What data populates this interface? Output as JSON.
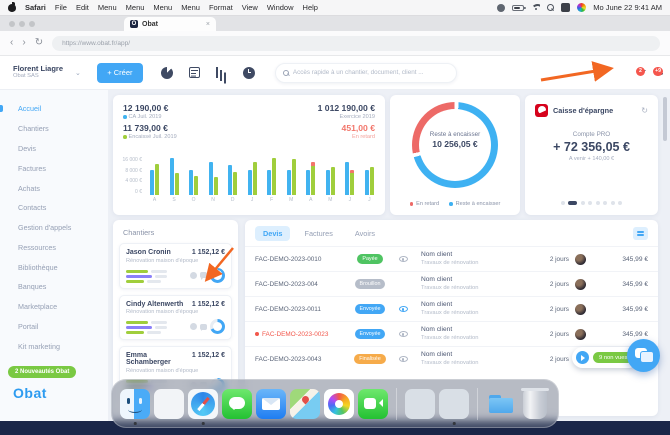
{
  "menubar": {
    "items": [
      "Safari",
      "File",
      "Edit",
      "Menu",
      "Menu",
      "Menu",
      "Menu",
      "Format",
      "View",
      "Window",
      "Help"
    ],
    "clock": "Mo June 22  9:41 AM"
  },
  "browser": {
    "tab_title": "Obat",
    "tab_close": "×",
    "url": "https://www.obat.fr/app/",
    "back": "‹",
    "forward": "›",
    "reload": "↻"
  },
  "header": {
    "user_name": "Florent Liagre",
    "company": "Obat SAS",
    "chevron": "⌄",
    "create_label": "+ Créer",
    "search_placeholder": "Accès rapide à un chantier, document, client ...",
    "chat_badge": "2",
    "bell_badge": "+9"
  },
  "sidebar": {
    "items": [
      {
        "label": "Accueil",
        "active": true
      },
      {
        "label": "Chantiers",
        "active": false
      },
      {
        "label": "Devis",
        "active": false
      },
      {
        "label": "Factures",
        "active": false
      },
      {
        "label": "Achats",
        "active": false
      },
      {
        "label": "Contacts",
        "active": false
      },
      {
        "label": "Gestion d'appels",
        "active": false
      },
      {
        "label": "Ressources",
        "active": false
      },
      {
        "label": "Bibliothèque",
        "active": false
      },
      {
        "label": "Banques",
        "active": false
      },
      {
        "label": "Marketplace",
        "active": false
      },
      {
        "label": "Portail",
        "active": false
      },
      {
        "label": "Kit marketing",
        "active": false
      }
    ],
    "new_badge": "2 Nouveautés Obat",
    "logo": "Obat"
  },
  "stats": {
    "ca_value": "12 190,00 €",
    "ca_label": "CA Juil. 2019",
    "ca_color": "#41b3f0",
    "enc_value": "11 739,00 €",
    "enc_label": "Encaissé Juil. 2019",
    "enc_color": "#a0ce3c",
    "ex_value": "1 012 190,00 €",
    "ex_label": "Exercice 2019",
    "late_value": "451,00 €",
    "late_label": "En retard"
  },
  "chart_data": [
    {
      "type": "bar",
      "categories": [
        "A",
        "S",
        "O",
        "N",
        "D",
        "J",
        "F",
        "M",
        "A",
        "M",
        "J",
        "J"
      ],
      "yticks": [
        "16 000 €",
        "8 000 €",
        "4 000 €",
        "0 €"
      ],
      "ylim": [
        0,
        20000
      ],
      "series": [
        {
          "name": "CA",
          "color": "#41b3f0",
          "values": [
            9000,
            18500,
            8500,
            15500,
            12500,
            8500,
            8500,
            8500,
            8500,
            8500,
            15500,
            8500
          ]
        },
        {
          "name": "Encaissé",
          "color": "#a0ce3c",
          "values": [
            13500,
            7000,
            5000,
            4500,
            7500,
            15500,
            18500,
            18000,
            12000,
            10500,
            7000,
            11000
          ]
        },
        {
          "name": "En retard",
          "color": "#f2766b",
          "values": [
            0,
            0,
            0,
            0,
            0,
            0,
            0,
            0,
            3500,
            0,
            1500,
            0
          ]
        }
      ],
      "legend_position": "none",
      "grid": false,
      "title": "",
      "xlabel": "",
      "ylabel": ""
    },
    {
      "type": "donut",
      "center_label": "Reste à encaisser",
      "center_value": "10 256,05 €",
      "slices": [
        {
          "label": "Reste à encaisser",
          "color": "#3eb1f2",
          "pct": 70
        },
        {
          "label": "En retard",
          "color": "#ed6a67",
          "pct": 30
        }
      ],
      "legend": [
        {
          "label": "En retard",
          "color": "#ed6a67"
        },
        {
          "label": "Reste à encaisser",
          "color": "#3eb1f2"
        }
      ]
    }
  ],
  "bank": {
    "name": "Caisse d'épargne",
    "account": "Compte PRO",
    "balance": "+ 72 356,05 €",
    "upcoming": "A venir + 140,00 €",
    "refresh_icon": "↻",
    "dots": 8,
    "active_dot": 1
  },
  "chantiers": {
    "title": "Chantiers",
    "items": [
      {
        "name": "Jason Cronin",
        "amount": "1 152,12 €",
        "subtitle": "Rénovation maison d'époque",
        "progress_pct": 68
      },
      {
        "name": "Cindy Altenwerth",
        "amount": "1 152,12 €",
        "subtitle": "Rénovation maison d'époque",
        "progress_pct": 68
      },
      {
        "name": "Emma Schamberger",
        "amount": "1 152,12 €",
        "subtitle": "Rénovation maison d'époque",
        "progress_pct": 68
      }
    ]
  },
  "documents": {
    "tabs": [
      "Devis",
      "Factures",
      "Avoirs"
    ],
    "active_tab": 0,
    "rows": [
      {
        "number": "FAC-DEMO-2023-0010",
        "alert": false,
        "status": "Payée",
        "status_color": "#4fc462",
        "eye": "gray",
        "client": "Nom client",
        "desc": "Travaux de rénovation",
        "due": "2 jours",
        "amount": "345,99 €"
      },
      {
        "number": "FAC-DEMO-2023-004",
        "alert": false,
        "status": "Brouillon",
        "status_color": "#b6bdc9",
        "eye": null,
        "client": "Nom client",
        "desc": "Travaux de rénovation",
        "due": "2 jours",
        "amount": "345,99 €"
      },
      {
        "number": "FAC-DEMO-2023-0011",
        "alert": false,
        "status": "Envoyée",
        "status_color": "#42a7f5",
        "eye": "blue",
        "client": "Nom client",
        "desc": "Travaux de rénovation",
        "due": "2 jours",
        "amount": "345,99 €"
      },
      {
        "number": "FAC-DEMO-2023-0023",
        "alert": true,
        "status": "Envoyée",
        "status_color": "#42a7f5",
        "eye": "gray",
        "client": "Nom client",
        "desc": "Travaux de rénovation",
        "due": "2 jours",
        "amount": "345,99 €"
      },
      {
        "number": "FAC-DEMO-2023-0043",
        "alert": false,
        "status": "Finalisée",
        "status_color": "#f6ab4a",
        "eye": "gray",
        "client": "Nom client",
        "desc": "Travaux de rénovation",
        "due": "2 jours",
        "amount": "345,99 €"
      }
    ]
  },
  "floating": {
    "unseen": "9 non vues"
  },
  "dock": {
    "items": [
      "finder",
      "launchpad",
      "safari",
      "messages",
      "mail",
      "maps",
      "photos",
      "facetime",
      "divider",
      "blank-1",
      "blank-2",
      "divider",
      "folder",
      "trash"
    ],
    "running": [
      "finder",
      "safari",
      "blank-2"
    ]
  }
}
